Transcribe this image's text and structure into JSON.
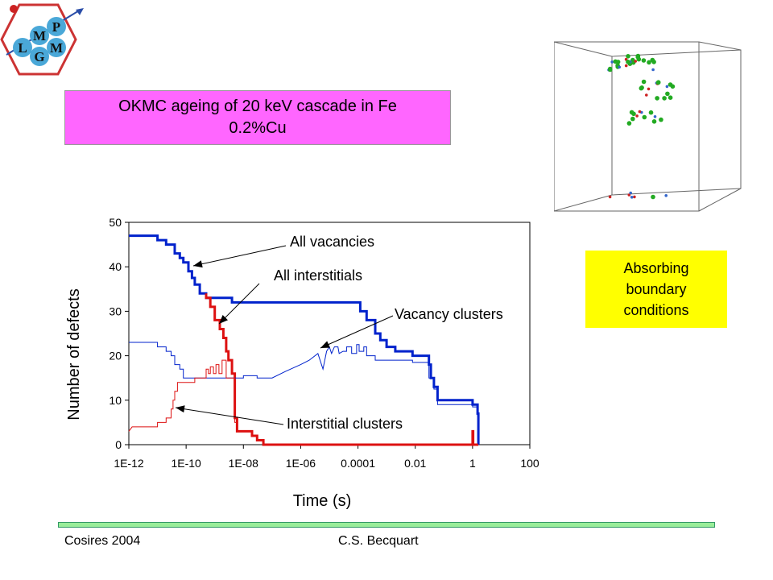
{
  "logo": {
    "letters": [
      "M",
      "P",
      "L",
      "M",
      "G"
    ],
    "colors": {
      "hex": "#cc3333",
      "disc": "#4aa8d8",
      "arrow": "#2a4da8"
    }
  },
  "title_box": {
    "line1": "OKMC ageing of 20 keV cascade in Fe",
    "line2": "0.2%Cu",
    "color": "#ff66ff"
  },
  "boundary_box": {
    "line1": "Absorbing",
    "line2": "boundary",
    "line3": "conditions",
    "color": "#ffff00"
  },
  "footer": {
    "left": "Cosires 2004",
    "center": "C.S. Becquart"
  },
  "chart_data": {
    "type": "line",
    "title": "",
    "xlabel": "Time (s)",
    "ylabel": "Number of defects",
    "x_scale": "log",
    "xlim": [
      1e-12,
      100
    ],
    "ylim": [
      0,
      50
    ],
    "x_ticks": [
      "1E-12",
      "1E-10",
      "1E-08",
      "1E-06",
      "0.0001",
      "0.01",
      "1",
      "100"
    ],
    "y_ticks": [
      "0",
      "10",
      "20",
      "30",
      "40",
      "50"
    ],
    "grid": false,
    "series": [
      {
        "name": "All vacancies",
        "color": "#0022cc",
        "width": 3,
        "points": [
          [
            1e-12,
            47
          ],
          [
            1e-11,
            47
          ],
          [
            1e-11,
            46
          ],
          [
            2e-11,
            46
          ],
          [
            2e-11,
            45
          ],
          [
            4e-11,
            45
          ],
          [
            4e-11,
            43
          ],
          [
            6e-11,
            43
          ],
          [
            6e-11,
            42
          ],
          [
            8e-11,
            42
          ],
          [
            8e-11,
            41
          ],
          [
            1.2e-10,
            41
          ],
          [
            1.2e-10,
            39
          ],
          [
            1.6e-10,
            39
          ],
          [
            1.6e-10,
            37.5
          ],
          [
            2e-10,
            37.5
          ],
          [
            2e-10,
            36
          ],
          [
            3e-10,
            36
          ],
          [
            3e-10,
            34
          ],
          [
            5e-10,
            34
          ],
          [
            5e-10,
            33
          ],
          [
            4e-09,
            33
          ],
          [
            4e-09,
            32
          ],
          [
            0.00012,
            32
          ],
          [
            0.00012,
            30
          ],
          [
            0.0002,
            30
          ],
          [
            0.0002,
            28
          ],
          [
            0.0004,
            28
          ],
          [
            0.0004,
            25
          ],
          [
            0.0006,
            25
          ],
          [
            0.0006,
            23.5
          ],
          [
            0.001,
            23.5
          ],
          [
            0.001,
            22
          ],
          [
            0.002,
            22
          ],
          [
            0.002,
            21
          ],
          [
            0.008,
            21
          ],
          [
            0.008,
            20
          ],
          [
            0.03,
            20
          ],
          [
            0.03,
            18
          ],
          [
            0.035,
            18
          ],
          [
            0.035,
            15
          ],
          [
            0.045,
            15
          ],
          [
            0.045,
            13
          ],
          [
            0.06,
            13
          ],
          [
            0.06,
            10
          ],
          [
            1,
            10
          ],
          [
            1,
            9
          ],
          [
            1.5,
            9
          ],
          [
            1.5,
            7
          ],
          [
            1.6,
            7
          ],
          [
            1.6,
            0
          ]
        ]
      },
      {
        "name": "All interstitials",
        "color": "#dd1111",
        "width": 3,
        "points": [
          [
            5e-10,
            34
          ],
          [
            5e-10,
            33
          ],
          [
            7e-10,
            33
          ],
          [
            7e-10,
            31
          ],
          [
            1e-09,
            31
          ],
          [
            1e-09,
            28
          ],
          [
            1.5e-09,
            28
          ],
          [
            1.5e-09,
            26
          ],
          [
            2e-09,
            26
          ],
          [
            2e-09,
            24
          ],
          [
            2.5e-09,
            24
          ],
          [
            2.5e-09,
            21
          ],
          [
            3e-09,
            21
          ],
          [
            3e-09,
            19
          ],
          [
            4e-09,
            19
          ],
          [
            4e-09,
            16
          ],
          [
            5e-09,
            16
          ],
          [
            5e-09,
            6
          ],
          [
            6e-09,
            6
          ],
          [
            6e-09,
            3
          ],
          [
            2e-08,
            3
          ],
          [
            2e-08,
            2
          ],
          [
            3e-08,
            2
          ],
          [
            3e-08,
            1
          ],
          [
            5e-08,
            1
          ],
          [
            5e-08,
            0
          ],
          [
            1,
            0
          ],
          [
            1,
            3
          ],
          [
            1.05,
            3
          ],
          [
            1.05,
            0
          ],
          [
            1.6,
            0
          ]
        ]
      },
      {
        "name": "Vacancy clusters",
        "color": "#0022cc",
        "width": 1,
        "points": [
          [
            1e-12,
            23
          ],
          [
            1e-11,
            23
          ],
          [
            1e-11,
            22
          ],
          [
            2e-11,
            22
          ],
          [
            2e-11,
            21
          ],
          [
            3e-11,
            21
          ],
          [
            3e-11,
            20
          ],
          [
            4e-11,
            20
          ],
          [
            4e-11,
            18
          ],
          [
            6e-11,
            18
          ],
          [
            6e-11,
            17
          ],
          [
            8e-11,
            17
          ],
          [
            8e-11,
            15
          ],
          [
            1e-08,
            15
          ],
          [
            1e-08,
            15.5
          ],
          [
            3e-08,
            15.5
          ],
          [
            3e-08,
            15
          ],
          [
            1e-07,
            15
          ],
          [
            3e-07,
            16.5
          ],
          [
            1e-06,
            18
          ],
          [
            2e-06,
            19
          ],
          [
            4e-06,
            20.5
          ],
          [
            6e-06,
            17
          ],
          [
            8e-06,
            21
          ],
          [
            1e-05,
            22
          ],
          [
            1.2e-05,
            20.5
          ],
          [
            1.5e-05,
            22
          ],
          [
            2e-05,
            22
          ],
          [
            2.2e-05,
            20.5
          ],
          [
            3e-05,
            21
          ],
          [
            4e-05,
            21
          ],
          [
            4e-05,
            22
          ],
          [
            6e-05,
            22
          ],
          [
            6e-05,
            20.5
          ],
          [
            9e-05,
            20.5
          ],
          [
            9e-05,
            22.5
          ],
          [
            0.00011,
            22.5
          ],
          [
            0.00011,
            21
          ],
          [
            0.00016,
            21
          ],
          [
            0.00016,
            22
          ],
          [
            0.0002,
            22
          ],
          [
            0.0002,
            20
          ],
          [
            0.0004,
            20
          ],
          [
            0.0004,
            19
          ],
          [
            0.008,
            19
          ],
          [
            0.008,
            18.5
          ],
          [
            0.03,
            18.5
          ],
          [
            0.03,
            15
          ],
          [
            0.045,
            15
          ],
          [
            0.045,
            12.5
          ],
          [
            0.06,
            12.5
          ],
          [
            0.06,
            9
          ],
          [
            1,
            9
          ],
          [
            1,
            8.5
          ],
          [
            1.5,
            8.5
          ],
          [
            1.5,
            6.5
          ],
          [
            1.6,
            6.5
          ],
          [
            1.6,
            0
          ]
        ]
      },
      {
        "name": "Interstitial clusters",
        "color": "#dd1111",
        "width": 1,
        "points": [
          [
            1e-12,
            3
          ],
          [
            1.3e-12,
            4
          ],
          [
            1e-11,
            4
          ],
          [
            1e-11,
            5
          ],
          [
            2e-11,
            5
          ],
          [
            2e-11,
            6
          ],
          [
            3e-11,
            6
          ],
          [
            3e-11,
            8
          ],
          [
            3.5e-11,
            8
          ],
          [
            3.5e-11,
            10
          ],
          [
            4e-11,
            10
          ],
          [
            4e-11,
            12
          ],
          [
            5e-11,
            12
          ],
          [
            5e-11,
            14
          ],
          [
            2e-10,
            14
          ],
          [
            2e-10,
            15
          ],
          [
            5e-10,
            15
          ],
          [
            5e-10,
            17
          ],
          [
            6e-10,
            17
          ],
          [
            6e-10,
            16
          ],
          [
            7e-10,
            16
          ],
          [
            7e-10,
            17.5
          ],
          [
            9e-10,
            17.5
          ],
          [
            9e-10,
            16
          ],
          [
            1.1e-09,
            16
          ],
          [
            1.1e-09,
            18
          ],
          [
            1.4e-09,
            18
          ],
          [
            1.4e-09,
            16
          ],
          [
            1.8e-09,
            16
          ],
          [
            1.8e-09,
            19
          ],
          [
            2.5e-09,
            19
          ],
          [
            2.5e-09,
            15
          ],
          [
            5e-09,
            15
          ],
          [
            5e-09,
            5
          ],
          [
            6e-09,
            5
          ],
          [
            6e-09,
            3
          ],
          [
            2e-08,
            3
          ],
          [
            2e-08,
            2
          ],
          [
            3e-08,
            2
          ],
          [
            3e-08,
            1
          ],
          [
            5e-08,
            1
          ],
          [
            5e-08,
            0
          ],
          [
            1.6,
            0
          ]
        ]
      }
    ],
    "annotations": [
      {
        "text": "All vacancies"
      },
      {
        "text": "All interstitials"
      },
      {
        "text": "Vacancy clusters"
      },
      {
        "text": "Interstitial clusters"
      }
    ]
  }
}
